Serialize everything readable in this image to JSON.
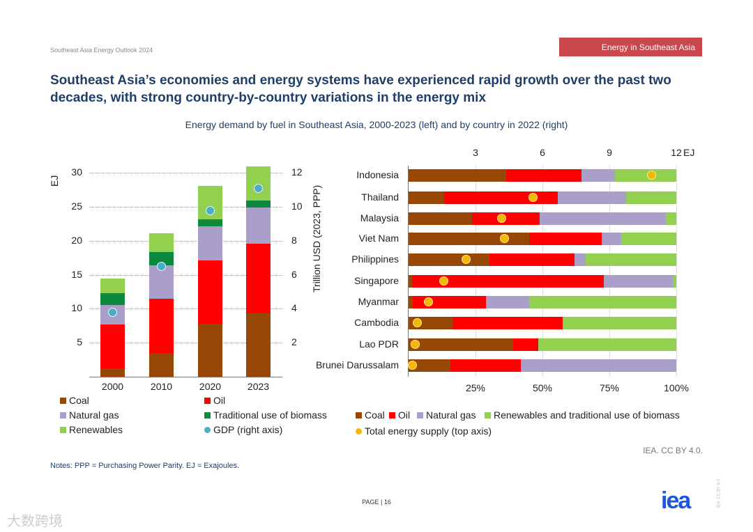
{
  "header": {
    "running_title": "Southeast Asia Energy Outlook 2024",
    "section_tag": "Energy in Southeast Asia"
  },
  "title": "Southeast Asia’s economies and energy systems have experienced rapid growth over the past two decades, with strong country-by-country variations in the energy mix",
  "subtitle": "Energy demand by fuel in Southeast Asia, 2000-2023 (left) and by country in 2022 (right)",
  "colors": {
    "coal": "#974806",
    "oil": "#ff0000",
    "gas": "#aa9fc8",
    "trad": "#0b8a3e",
    "ren": "#92d050",
    "gdp": "#4bacc6",
    "tes": "#f5b800"
  },
  "chart_data": [
    {
      "type": "bar",
      "stacked": true,
      "ylabel": "EJ",
      "y2label": "Trillion USD (2023, PPP)",
      "ylim": [
        0,
        30
      ],
      "y2lim": [
        0,
        12
      ],
      "yticks": [
        "5",
        "10",
        "15",
        "20",
        "25",
        "30"
      ],
      "y2ticks": [
        "2",
        "4",
        "6",
        "8",
        "10",
        "12"
      ],
      "categories": [
        "2000",
        "2010",
        "2020",
        "2023"
      ],
      "series": [
        {
          "name": "Coal",
          "key": "coal",
          "values": [
            1.2,
            3.5,
            7.8,
            9.3
          ]
        },
        {
          "name": "Oil",
          "key": "oil",
          "values": [
            6.5,
            8.0,
            9.3,
            10.3
          ]
        },
        {
          "name": "Natural gas",
          "key": "gas",
          "values": [
            2.8,
            4.9,
            5.0,
            5.3
          ]
        },
        {
          "name": "Traditional use of biomass",
          "key": "trad",
          "values": [
            1.8,
            1.9,
            1.0,
            1.0
          ]
        },
        {
          "name": "Renewables",
          "key": "ren",
          "values": [
            2.1,
            2.8,
            5.0,
            5.0
          ]
        }
      ],
      "gdp": {
        "name": "GDP (right axis)",
        "values": [
          3.8,
          6.5,
          9.8,
          11.1
        ]
      },
      "legend_position": "bottom"
    },
    {
      "type": "bar",
      "stacked": true,
      "orientation": "horizontal",
      "unit": "%",
      "xlim": [
        0,
        100
      ],
      "xticks": [
        "25%",
        "50%",
        "75%",
        "100%"
      ],
      "top_axis": {
        "unit": "EJ",
        "ticks": [
          "3",
          "6",
          "9",
          "12"
        ],
        "lim": [
          0,
          12
        ]
      },
      "categories": [
        "Indonesia",
        "Thailand",
        "Malaysia",
        "Viet Nam",
        "Philippines",
        "Singapore",
        "Myanmar",
        "Cambodia",
        "Lao PDR",
        "Brunei Darussalam"
      ],
      "series": [
        {
          "name": "Coal",
          "key": "coal",
          "values": [
            36.4,
            13.4,
            23.6,
            45.0,
            30.3,
            1.2,
            1.5,
            16.7,
            39.0,
            15.7
          ]
        },
        {
          "name": "Oil",
          "key": "oil",
          "values": [
            28.1,
            42.3,
            25.3,
            27.1,
            31.7,
            71.8,
            27.5,
            40.9,
            9.4,
            26.3
          ]
        },
        {
          "name": "Natural gas",
          "key": "gas",
          "values": [
            12.7,
            25.6,
            47.1,
            7.2,
            4.1,
            25.6,
            16.0,
            0,
            0,
            58.0
          ]
        },
        {
          "name": "Renewables and traditional use of biomass",
          "key": "ren",
          "values": [
            22.8,
            18.7,
            4.0,
            20.7,
            33.9,
            1.4,
            55.0,
            42.4,
            51.6,
            0
          ]
        }
      ],
      "tes": {
        "name": "Total energy supply (top axis)",
        "values": [
          10.9,
          5.6,
          4.2,
          4.3,
          2.6,
          1.6,
          0.9,
          0.4,
          0.3,
          0.2
        ]
      },
      "legend_position": "bottom"
    }
  ],
  "notes": "Notes: PPP = Purchasing Power Parity. EJ = Exajoules.",
  "credit": "IEA. CC BY 4.0.",
  "side_credit": "IEA. CC BY 4.0.",
  "page": "PAGE | 16",
  "logo": "iea",
  "watermark": "大数跨境"
}
